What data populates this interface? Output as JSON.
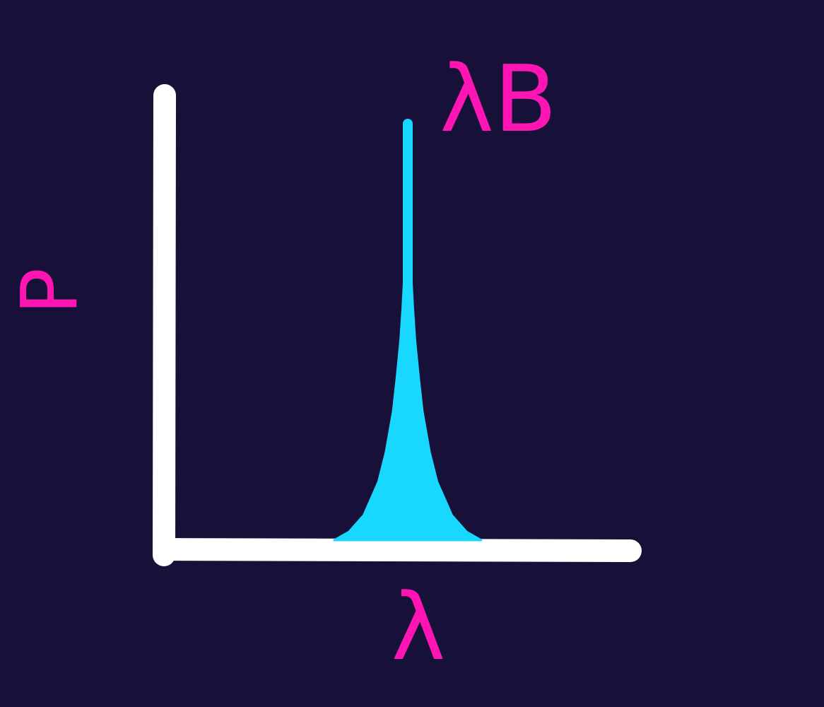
{
  "colors": {
    "background": "#171039",
    "axes": "#ffffff",
    "peak": "#18d8ff",
    "labels": "#ff14b4"
  },
  "chart_data": {
    "type": "area",
    "title": "",
    "xlabel": "λ",
    "ylabel": "P",
    "grid": false,
    "annotations": [
      {
        "text": "λB",
        "x": 0.0
      }
    ],
    "series": [
      {
        "x": [
          -1.0,
          -0.8,
          -0.6,
          -0.4,
          -0.3,
          -0.2,
          -0.15,
          -0.1,
          -0.07,
          -0.04,
          -0.02,
          0.0,
          0.02,
          0.04,
          0.07,
          0.1,
          0.15,
          0.2,
          0.3,
          0.4,
          0.6,
          0.8,
          1.0
        ],
        "y": [
          0.0,
          0.02,
          0.06,
          0.14,
          0.21,
          0.31,
          0.39,
          0.48,
          0.56,
          0.66,
          0.75,
          1.0,
          0.75,
          0.66,
          0.56,
          0.48,
          0.39,
          0.31,
          0.21,
          0.14,
          0.06,
          0.02,
          0.0
        ]
      }
    ]
  }
}
